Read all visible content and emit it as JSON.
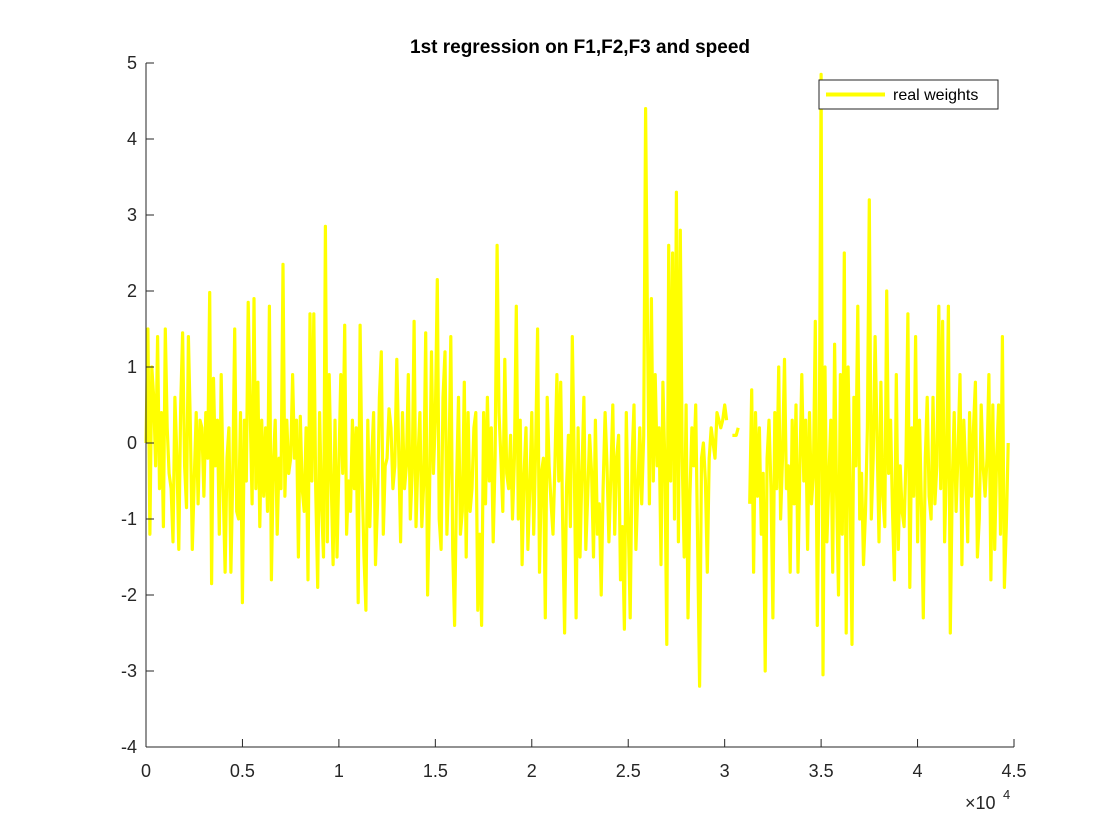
{
  "chart_data": {
    "type": "line",
    "title": "1st regression on F1,F2,F3 and speed",
    "xlabel": "",
    "ylabel": "",
    "xlim": [
      0,
      45000
    ],
    "ylim": [
      -4,
      5
    ],
    "x_ticks": [
      0,
      5000,
      10000,
      15000,
      20000,
      25000,
      30000,
      35000,
      40000,
      45000
    ],
    "x_tick_labels": [
      "0",
      "0.5",
      "1",
      "1.5",
      "2",
      "2.5",
      "3",
      "3.5",
      "4",
      "4.5"
    ],
    "x_exponent_label": {
      "base": "×10",
      "power": "4"
    },
    "y_ticks": [
      -4,
      -3,
      -2,
      -1,
      0,
      1,
      2,
      3,
      4,
      5
    ],
    "y_tick_labels": [
      "-4",
      "-3",
      "-2",
      "-1",
      "0",
      "1",
      "2",
      "3",
      "4",
      "5"
    ],
    "grid": false,
    "legend": {
      "location": "top-right",
      "entries": [
        "real weights"
      ]
    },
    "series": [
      {
        "name": "real weights",
        "color": "#ffff00",
        "x_start": 0,
        "x_step": 100,
        "values": [
          0.0,
          1.5,
          -1.2,
          1.0,
          0.6,
          -0.3,
          1.4,
          -0.6,
          0.4,
          -1.1,
          1.5,
          0.2,
          -0.4,
          -0.6,
          -1.3,
          0.6,
          -0.2,
          -1.4,
          0.5,
          1.45,
          -0.3,
          -0.85,
          1.4,
          0.2,
          -1.4,
          -0.5,
          0.4,
          -0.8,
          0.3,
          0.2,
          -0.7,
          0.4,
          -0.2,
          1.98,
          -1.85,
          0.85,
          -0.3,
          0.3,
          -1.2,
          0.9,
          -0.6,
          -1.7,
          -0.2,
          0.2,
          -1.7,
          -0.4,
          1.5,
          -0.9,
          -1.0,
          0.4,
          -2.1,
          0.3,
          -0.5,
          1.85,
          0.4,
          -0.8,
          1.9,
          -0.6,
          0.8,
          -1.1,
          0.3,
          -0.7,
          0.2,
          -0.9,
          1.8,
          -1.8,
          -0.3,
          0.3,
          -1.2,
          -0.2,
          -0.6,
          2.35,
          -0.7,
          0.3,
          -0.4,
          -0.2,
          0.9,
          -0.2,
          0.3,
          -1.5,
          0.35,
          -0.6,
          -0.9,
          0.2,
          -1.8,
          1.7,
          -0.5,
          1.7,
          -0.6,
          -1.9,
          0.4,
          -0.8,
          -1.5,
          2.85,
          -1.3,
          0.9,
          -0.5,
          -1.6,
          0.3,
          -1.5,
          -0.3,
          0.9,
          -0.4,
          1.55,
          -1.2,
          -0.5,
          -0.9,
          0.3,
          -0.6,
          0.2,
          -2.1,
          1.55,
          -0.4,
          -1.5,
          -2.2,
          0.3,
          -1.1,
          -0.2,
          0.4,
          -1.6,
          -0.8,
          0.6,
          1.2,
          -1.2,
          -0.3,
          -0.2,
          0.45,
          0.2,
          -0.6,
          -0.3,
          1.1,
          -0.1,
          -1.3,
          0.4,
          -0.6,
          -0.3,
          0.9,
          -1.0,
          -0.4,
          1.6,
          -1.1,
          -0.2,
          0.4,
          -1.1,
          -0.5,
          1.45,
          -2.0,
          -0.7,
          1.2,
          -0.4,
          0.3,
          2.15,
          -1.0,
          -1.4,
          0.6,
          1.2,
          -1.2,
          -0.4,
          1.4,
          -1.4,
          -2.4,
          -0.5,
          0.6,
          -1.2,
          -0.9,
          0.8,
          -1.5,
          0.4,
          -0.9,
          -0.6,
          0.2,
          0.4,
          -2.2,
          -1.2,
          -2.4,
          0.4,
          -0.8,
          0.6,
          -0.5,
          0.2,
          -1.3,
          -0.2,
          2.6,
          0.4,
          -0.2,
          -0.9,
          1.1,
          -0.4,
          -0.6,
          0.1,
          -1.0,
          -0.2,
          1.8,
          -1.0,
          0.3,
          -1.6,
          -0.4,
          0.2,
          -1.4,
          -0.6,
          0.4,
          -1.2,
          -0.1,
          1.5,
          -1.7,
          -0.4,
          -0.2,
          -2.3,
          0.6,
          -0.3,
          -0.8,
          -1.2,
          -0.3,
          0.9,
          -0.5,
          0.8,
          -1.0,
          -2.5,
          -0.6,
          0.1,
          -1.1,
          1.4,
          -0.2,
          -2.3,
          0.2,
          -1.5,
          -0.4,
          0.6,
          -1.4,
          -0.7,
          0.1,
          -0.4,
          -1.5,
          0.3,
          -1.2,
          -0.8,
          -2.0,
          -0.6,
          0.4,
          -0.3,
          -1.3,
          -0.4,
          0.5,
          -1.2,
          -0.2,
          0.1,
          -1.8,
          -1.1,
          -2.45,
          0.4,
          -1.0,
          -2.3,
          -0.2,
          0.5,
          -1.4,
          -0.6,
          0.2,
          -0.8,
          0.1,
          4.4,
          1.5,
          -0.8,
          1.9,
          -0.5,
          0.9,
          -0.3,
          0.2,
          -1.6,
          0.8,
          -0.3,
          -2.65,
          2.6,
          -0.5,
          2.5,
          -1.0,
          3.3,
          -1.3,
          2.8,
          -0.2,
          -1.5,
          0.5,
          -2.3,
          -0.7,
          0.2,
          -0.3,
          0.5,
          -1.4,
          -3.2,
          -0.2,
          0.0,
          -0.5,
          -1.7,
          -0.2,
          0.2,
          0.0,
          -0.2,
          0.4,
          0.3,
          0.2,
          0.3,
          0.5,
          0.3,
          null,
          null,
          0.1,
          0.1,
          0.1,
          0.2,
          null,
          null,
          null,
          null,
          null,
          -0.8,
          0.7,
          -1.7,
          0.4,
          -0.7,
          0.2,
          -1.2,
          -0.4,
          -3.0,
          -0.2,
          0.3,
          -0.6,
          -2.3,
          0.4,
          -0.6,
          1.0,
          -1.0,
          -0.2,
          1.1,
          -0.6,
          -0.3,
          -1.7,
          0.3,
          -0.8,
          0.5,
          -1.7,
          -0.3,
          0.9,
          -0.5,
          0.3,
          -1.4,
          0.4,
          -0.8,
          -0.4,
          1.6,
          -2.4,
          -0.3,
          4.85,
          -3.05,
          1.0,
          -1.3,
          -0.5,
          0.3,
          -1.7,
          1.3,
          -0.6,
          -2.0,
          0.9,
          -1.2,
          2.5,
          -2.5,
          1.0,
          -0.5,
          -2.65,
          0.6,
          -0.3,
          1.8,
          -1.0,
          -0.4,
          -1.6,
          -0.9,
          0.2,
          3.2,
          -1.0,
          -0.2,
          1.4,
          0.1,
          -1.3,
          0.8,
          -0.7,
          -1.1,
          2.0,
          -0.4,
          0.3,
          -0.9,
          -1.8,
          0.9,
          -1.4,
          -0.3,
          -0.9,
          -1.1,
          -0.2,
          1.7,
          -1.9,
          0.2,
          -0.7,
          1.4,
          -1.3,
          0.3,
          -0.8,
          -2.3,
          -0.2,
          0.6,
          -0.7,
          -1.0,
          0.6,
          -0.8,
          -0.3,
          1.8,
          -0.6,
          1.6,
          -1.3,
          -0.3,
          1.8,
          -2.5,
          -0.5,
          0.4,
          -0.9,
          -0.1,
          0.9,
          -1.6,
          0.3,
          -0.4,
          -1.3,
          0.4,
          -0.7,
          0.2,
          0.8,
          -1.5,
          -1.0,
          0.5,
          -0.3,
          -0.7,
          -0.2,
          0.9,
          -1.8,
          0.5,
          -1.4,
          -0.2,
          0.5,
          -1.2,
          1.4,
          -1.9,
          -1.1,
          0.0
        ]
      }
    ]
  }
}
